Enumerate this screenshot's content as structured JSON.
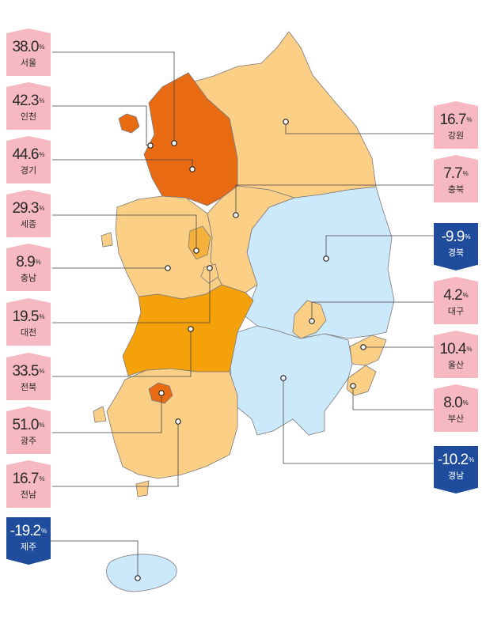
{
  "unit": "%",
  "colors": {
    "very_high": "#e86a12",
    "high": "#f4a10a",
    "medium_high": "#f6b13c",
    "low": "#fbcf86",
    "negative": "#cce8fb",
    "badge_positive": "#f6b8c1",
    "badge_negative": "#1f4c9c",
    "border": "#7a7a7a"
  },
  "regions": [
    {
      "key": "seoul",
      "name": "서울",
      "value": "38.0",
      "sign": "positive"
    },
    {
      "key": "incheon",
      "name": "인천",
      "value": "42.3",
      "sign": "positive"
    },
    {
      "key": "gyeonggi",
      "name": "경기",
      "value": "44.6",
      "sign": "positive"
    },
    {
      "key": "sejong",
      "name": "세종",
      "value": "29.3",
      "sign": "positive"
    },
    {
      "key": "chungnam",
      "name": "충남",
      "value": "8.9",
      "sign": "positive"
    },
    {
      "key": "daejeon",
      "name": "대전",
      "value": "19.5",
      "sign": "positive"
    },
    {
      "key": "jeonbuk",
      "name": "전북",
      "value": "33.5",
      "sign": "positive"
    },
    {
      "key": "gwangju",
      "name": "광주",
      "value": "51.0",
      "sign": "positive"
    },
    {
      "key": "jeonnam",
      "name": "전남",
      "value": "16.7",
      "sign": "positive"
    },
    {
      "key": "jeju",
      "name": "제주",
      "value": "-19.2",
      "sign": "negative"
    },
    {
      "key": "gangwon",
      "name": "강원",
      "value": "16.7",
      "sign": "positive"
    },
    {
      "key": "chungbuk",
      "name": "충북",
      "value": "7.7",
      "sign": "positive"
    },
    {
      "key": "gyeongbuk",
      "name": "경북",
      "value": "-9.9",
      "sign": "negative"
    },
    {
      "key": "daegu",
      "name": "대구",
      "value": "4.2",
      "sign": "positive"
    },
    {
      "key": "ulsan",
      "name": "울산",
      "value": "10.4",
      "sign": "positive"
    },
    {
      "key": "busan",
      "name": "부산",
      "value": "8.0",
      "sign": "positive"
    },
    {
      "key": "gyeongnam",
      "name": "경남",
      "value": "-10.2",
      "sign": "negative"
    }
  ]
}
